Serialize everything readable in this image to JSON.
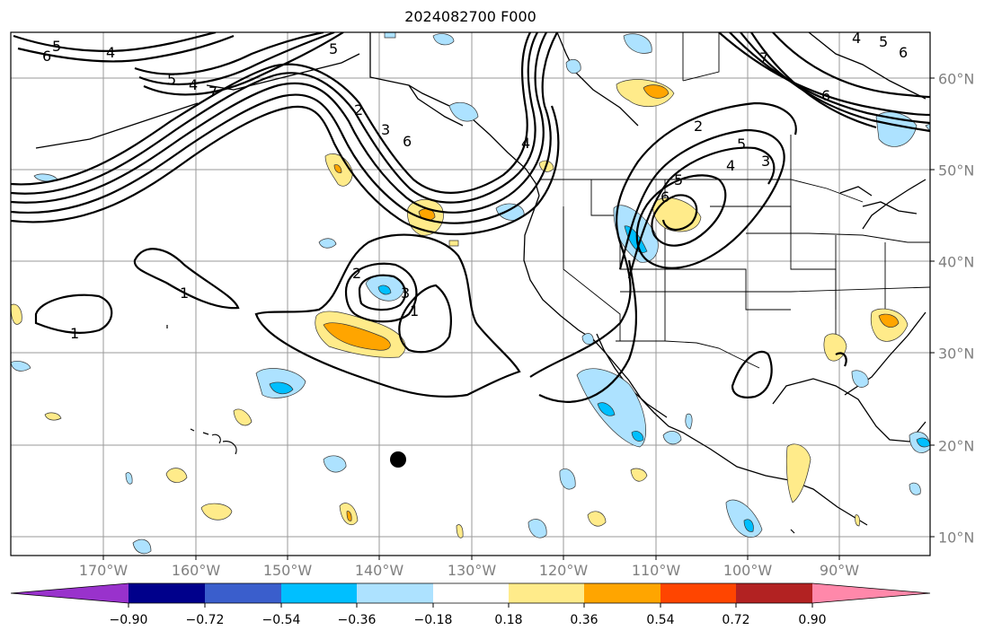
{
  "title": "2024082700 F000",
  "map": {
    "lon_labels": [
      "170°W",
      "160°W",
      "150°W",
      "140°W",
      "130°W",
      "120°W",
      "110°W",
      "100°W",
      "90°W"
    ],
    "lat_labels": [
      "60°N",
      "50°N",
      "40°N",
      "30°N",
      "20°N",
      "10°N"
    ],
    "contour_labels": [
      "5",
      "6",
      "4",
      "5",
      "4",
      "7",
      "5",
      "2",
      "3",
      "6",
      "4",
      "2",
      "5",
      "4",
      "3",
      "6",
      "5",
      "6",
      "7",
      "4",
      "6",
      "5",
      "1",
      "2",
      "3",
      "1",
      "1"
    ],
    "typhoon_marker": "black-dot"
  },
  "colorbar": {
    "tick_labels": [
      "−0.90",
      "−0.72",
      "−0.54",
      "−0.36",
      "−0.18",
      "0.18",
      "0.36",
      "0.54",
      "0.72",
      "0.90"
    ],
    "colors": [
      "#9932CC",
      "#00008B",
      "#3A5ECC",
      "#00BFFF",
      "#ADE2FF",
      "#FFFFFF",
      "#FFEB8A",
      "#FFA500",
      "#FF4500",
      "#B22222",
      "#FF88AA"
    ]
  }
}
